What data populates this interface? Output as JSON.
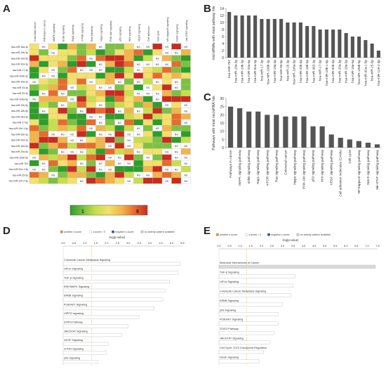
{
  "panel_labels": {
    "a": "A",
    "b": "B",
    "c": "C",
    "d": "D",
    "e": "E"
  },
  "heatmap": {
    "columns": [
      "Colorectal cancer",
      "Pathways in cancer",
      "MAPK signaling",
      "ErbB signaling",
      "Rap1 signaling",
      "mTOR signaling",
      "Ras signaling",
      "Hippo signaling",
      "PI3K-Akt signaling",
      "p53 signaling",
      "Wnt signaling",
      "VEGF signaling",
      "Cell adhesion",
      "Cell cycle",
      "NF-kappa B signaling",
      "Notch signaling",
      "Jak-STAT signaling"
    ],
    "rows": [
      "hsa-miR-18a-3p",
      "hsa-miR-19b-3p",
      "hsa-miR-20a-5p",
      "hsa-miR-92a-3p",
      "hsa-miR-17-3p",
      "hsa-miR-106b-3p",
      "hsa-miR-19a-3p",
      "hsa-miR-93-5p",
      "hsa-miR-25-3p",
      "hsa-miR-106a-5p",
      "hsa-miR-20b-5p",
      "hsa-miR-18b-5p",
      "hsa-miR-363-3p",
      "hsa-miR-17-5p",
      "hsa-miR-19b-1-5p",
      "hsa-miR-92b-3p",
      "hsa-miR-20a-3p",
      "hsa-miR-18a-5p",
      "hsa-miR-19a-5p",
      "hsa-miR-106b-5p",
      "hsa-miR-762",
      "hsa-miR-92a-1-5p",
      "hsa-miR-25-5p",
      "hsa-miR-129-2-3p"
    ],
    "ns": "NS",
    "scale_min": "1",
    "scale_max": "8",
    "colors": [
      "#2e9e2a",
      "#7cc242",
      "#c8df4c",
      "#f4e06a",
      "#f2b54a",
      "#e96b2c",
      "#cc2b1d"
    ]
  },
  "chart_data": [
    {
      "type": "bar",
      "panel": "B",
      "ylabel": "microRNAs with most pathway hits",
      "ylim": [
        0,
        14
      ],
      "yticks": [
        0,
        2,
        4,
        6,
        8,
        10,
        12,
        14
      ],
      "categories": [
        "hsa-miR-762",
        "hsa-miR-18a-3p",
        "hsa-miR-19b-3p",
        "hsa-miR-20a-5p",
        "hsa-miR-92a-3p",
        "hsa-miR-17-3p",
        "hsa-miR-106b-3p",
        "hsa-miR-19a-3p",
        "hsa-miR-93-5p",
        "hsa-miR-25-3p",
        "hsa-miR-106a-5p",
        "hsa-miR-20b-5p",
        "hsa-miR-18b-5p",
        "hsa-miR-363-3p",
        "hsa-miR-17-5p",
        "hsa-miR-19b-1-5p",
        "hsa-miR-92b-3p",
        "hsa-miR-20a-3p",
        "hsa-miR-18a-5p",
        "hsa-miR-19a-5p",
        "hsa-miR-106b-5p",
        "hsa-miR-92a-1-5p",
        "hsa-miR-25-5p",
        "hsa-miR-129-2-3p"
      ],
      "values": [
        13,
        12,
        12,
        12,
        12,
        11,
        11,
        11,
        11,
        10,
        10,
        10,
        9,
        9,
        8,
        8,
        8,
        8,
        7,
        6,
        6,
        5,
        4,
        2
      ],
      "color": "#555555"
    },
    {
      "type": "bar",
      "panel": "C",
      "ylabel": "Pathways with most microRNA hits",
      "ylim": [
        0,
        30
      ],
      "yticks": [
        0,
        5,
        10,
        15,
        20,
        25,
        30
      ],
      "categories": [
        "Pathways in cancer",
        "MAPK signaling pathway",
        "ErbB signaling pathway",
        "Rap1 signaling pathway",
        "mTOR signaling pathway",
        "Ras signaling pathway",
        "Colorectal cancer",
        "Hippo signaling pathway",
        "PI3K-Akt signaling pathway",
        "p53 signaling pathway",
        "Wnt signaling pathway",
        "VEGF signaling pathway",
        "Cell adhesion molecules (CAMs)",
        "Cell cycle",
        "NF-kappa B signaling pathway",
        "Notch signaling pathway",
        "Jak-STAT signaling pathway"
      ],
      "values": [
        25,
        24,
        22,
        22,
        20,
        20,
        19,
        19,
        19,
        13,
        13,
        8,
        6,
        5,
        4,
        3,
        2
      ],
      "color": "#555555"
    },
    {
      "type": "bar",
      "panel": "D",
      "orientation": "horizontal",
      "xlabel": "-log(p-value)",
      "xlim": [
        0,
        5.5
      ],
      "xticks": [
        "0.0",
        "0.5",
        "1.0",
        "1.5",
        "2.0",
        "2.5",
        "3.0",
        "3.5",
        "4.0",
        "4.5",
        "5.0",
        "5.5"
      ],
      "legend": [
        "positive z-score",
        "z-score = 0",
        "negative z-score",
        "no activity pattern available"
      ],
      "categories": [
        "Colorectal Cancer Metastasis Signaling",
        "HIF1α Signaling",
        "TGF-β Signaling",
        "ERK/MAPK Signaling",
        "ERBB Signaling",
        "PI3K/AKT Signaling",
        "HIPPO signaling",
        "STAT3 Pathway",
        "JAK/STAT Signaling",
        "VEGF Signaling",
        "mTOR Signaling",
        "p53 Signaling"
      ],
      "values": [
        5.4,
        5.3,
        4.9,
        4.7,
        4.6,
        4.2,
        3.5,
        3.0,
        2.7,
        2.1,
        2.0,
        1.6
      ]
    },
    {
      "type": "bar",
      "panel": "E",
      "orientation": "horizontal",
      "xlabel": "-log(p-value)",
      "xlim": [
        0,
        7.5
      ],
      "xticks": [
        "0.0",
        "0.5",
        "1.0",
        "1.5",
        "2.0",
        "2.5",
        "3.0",
        "3.5",
        "4.0",
        "4.5",
        "5.0",
        "5.5",
        "6.0",
        "6.5",
        "7.0",
        "7.5"
      ],
      "legend": [
        "positive z-score",
        "z-score = 0",
        "negative z-score",
        "no activity pattern available"
      ],
      "categories": [
        "Molecular Mechanisms of Cancer",
        "TGF-β Signaling",
        "HIF1α Signaling",
        "Colorectal Cancer Metastasis Signaling",
        "ERBB Signaling",
        "p53 Signaling",
        "PI3K/AKT Signaling",
        "STAT3 Pathway",
        "JAK/STAT Signaling",
        "Cell Cycle: G1/S Checkpoint Regulation",
        "VEGF Signaling"
      ],
      "values": [
        7.4,
        3.6,
        3.5,
        3.4,
        3.0,
        2.8,
        2.8,
        2.6,
        2.4,
        2.1,
        1.9
      ]
    }
  ]
}
